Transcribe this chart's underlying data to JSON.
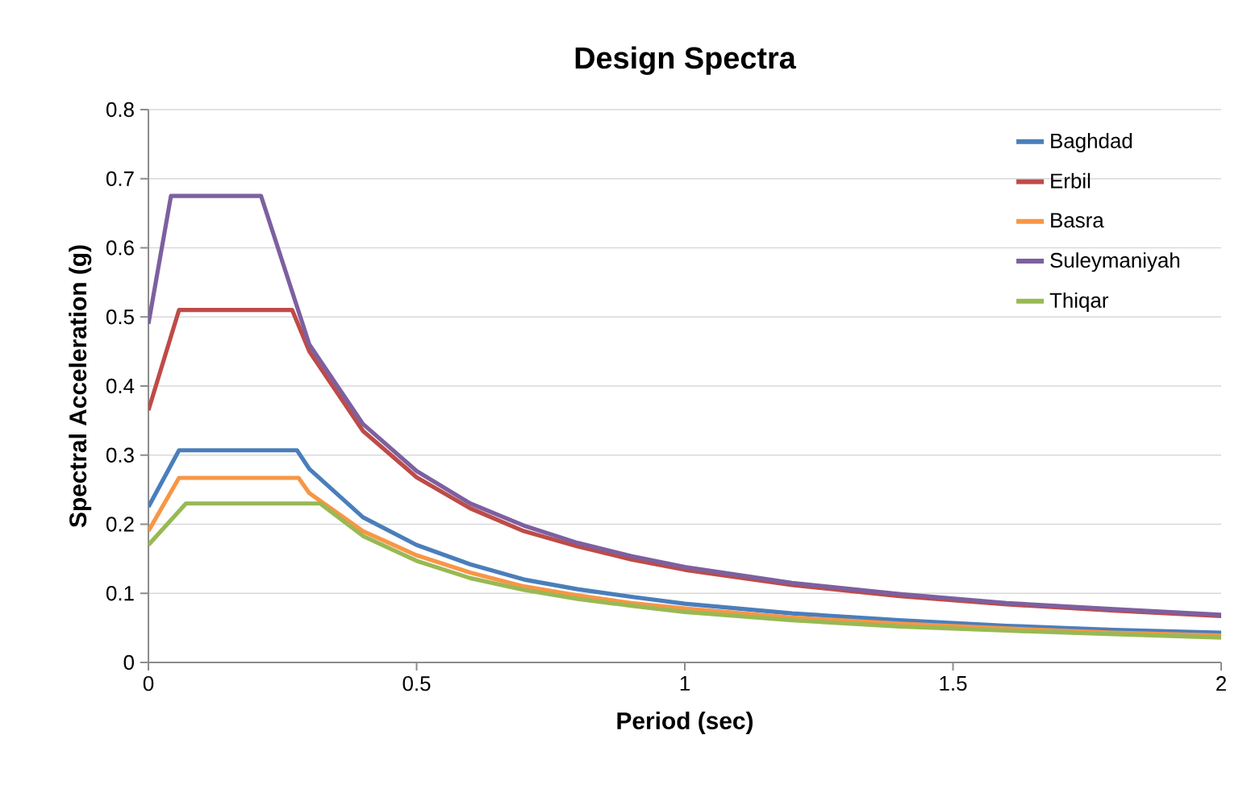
{
  "chart_data": {
    "type": "line",
    "title": "Design Spectra",
    "xlabel": "Period (sec)",
    "ylabel": "Spectral Acceleration (g)",
    "xlim": [
      0,
      2
    ],
    "ylim": [
      0,
      0.8
    ],
    "xticks": [
      0,
      0.5,
      1,
      1.5,
      2
    ],
    "yticks": [
      0,
      0.1,
      0.2,
      0.3,
      0.4,
      0.5,
      0.6,
      0.7,
      0.8
    ],
    "grid": "y",
    "legend": "top right",
    "line_style": "solid",
    "series": [
      {
        "name": "Baghdad",
        "color": "#4a7ebb",
        "x": [
          0,
          0.057,
          0.277,
          0.3,
          0.4,
          0.5,
          0.6,
          0.7,
          0.8,
          0.9,
          1.0,
          1.2,
          1.4,
          1.6,
          1.8,
          2.0
        ],
        "values": [
          0.225,
          0.307,
          0.307,
          0.28,
          0.21,
          0.17,
          0.142,
          0.12,
          0.106,
          0.095,
          0.085,
          0.071,
          0.061,
          0.053,
          0.047,
          0.043
        ]
      },
      {
        "name": "Erbil",
        "color": "#be4b48",
        "x": [
          0,
          0.057,
          0.268,
          0.3,
          0.4,
          0.5,
          0.6,
          0.7,
          0.8,
          0.9,
          1.0,
          1.2,
          1.4,
          1.6,
          1.8,
          2.0
        ],
        "values": [
          0.365,
          0.51,
          0.51,
          0.45,
          0.335,
          0.268,
          0.223,
          0.19,
          0.168,
          0.149,
          0.134,
          0.112,
          0.096,
          0.084,
          0.075,
          0.067
        ]
      },
      {
        "name": "Basra",
        "color": "#f79646",
        "x": [
          0,
          0.057,
          0.28,
          0.3,
          0.4,
          0.5,
          0.6,
          0.7,
          0.8,
          0.9,
          1.0,
          1.2,
          1.4,
          1.6,
          1.8,
          2.0
        ],
        "values": [
          0.19,
          0.267,
          0.267,
          0.245,
          0.19,
          0.155,
          0.13,
          0.11,
          0.097,
          0.086,
          0.078,
          0.065,
          0.056,
          0.049,
          0.043,
          0.039
        ]
      },
      {
        "name": "Suleymaniyah",
        "color": "#7d60a0",
        "x": [
          0,
          0.042,
          0.21,
          0.3,
          0.4,
          0.5,
          0.6,
          0.7,
          0.8,
          0.9,
          1.0,
          1.2,
          1.4,
          1.6,
          1.8,
          2.0
        ],
        "values": [
          0.49,
          0.675,
          0.675,
          0.46,
          0.345,
          0.277,
          0.23,
          0.198,
          0.173,
          0.154,
          0.138,
          0.115,
          0.099,
          0.086,
          0.077,
          0.069
        ]
      },
      {
        "name": "Thiqar",
        "color": "#98b954",
        "x": [
          0,
          0.07,
          0.32,
          0.4,
          0.5,
          0.6,
          0.7,
          0.8,
          0.9,
          1.0,
          1.2,
          1.4,
          1.6,
          1.8,
          2.0
        ],
        "values": [
          0.17,
          0.23,
          0.23,
          0.183,
          0.147,
          0.122,
          0.105,
          0.092,
          0.082,
          0.073,
          0.061,
          0.052,
          0.046,
          0.041,
          0.036
        ]
      }
    ]
  }
}
